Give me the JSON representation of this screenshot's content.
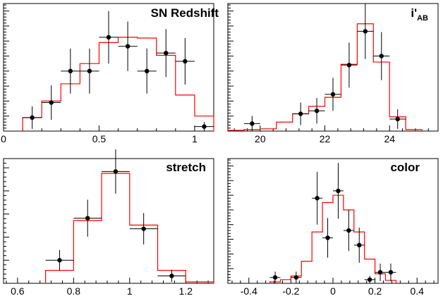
{
  "chart_data": [
    {
      "type": "histogram-with-errorbars",
      "title": "SN Redshift",
      "xlim": [
        0,
        1.1
      ],
      "ylim": [
        0,
        17
      ],
      "xticks": [
        0,
        0.5,
        1
      ],
      "xtick_labels": [
        "0",
        "0.5",
        "1"
      ],
      "histogram": {
        "color": "#ff0000",
        "edges": [
          0.1,
          0.2,
          0.3,
          0.4,
          0.5,
          0.6,
          0.7,
          0.8,
          0.9,
          1.0,
          1.1
        ],
        "values": [
          1.8,
          4.0,
          6.3,
          9.0,
          11.8,
          12.5,
          12.4,
          10.1,
          4.8,
          2.0
        ]
      },
      "points": {
        "x": [
          0.15,
          0.25,
          0.35,
          0.45,
          0.55,
          0.65,
          0.75,
          0.85,
          0.95,
          1.05
        ],
        "y": [
          1.8,
          3.8,
          8.0,
          8.0,
          12.5,
          11.3,
          8.0,
          10.4,
          9.3,
          0.6
        ],
        "xerr": [
          0.05,
          0.05,
          0.05,
          0.05,
          0.05,
          0.05,
          0.05,
          0.05,
          0.05,
          0.05
        ],
        "yerr": [
          1.5,
          2.3,
          3.0,
          3.0,
          3.5,
          3.3,
          3.0,
          3.2,
          3.1,
          0.6
        ]
      }
    },
    {
      "type": "histogram-with-errorbars",
      "title": "i'",
      "title_subscript": "AB",
      "xlim": [
        19,
        25.5
      ],
      "ylim": [
        0,
        17
      ],
      "xticks": [
        20,
        22,
        24
      ],
      "xtick_labels": [
        "20",
        "22",
        "24"
      ],
      "histogram": {
        "color": "#ff0000",
        "edges": [
          19.0,
          19.5,
          20.0,
          20.5,
          21.0,
          21.5,
          22.0,
          22.5,
          23.0,
          23.5,
          24.0,
          24.5,
          25.0
        ],
        "values": [
          0.1,
          0.2,
          0.3,
          1.2,
          2.3,
          3.3,
          4.5,
          8.9,
          14.3,
          9.2,
          1.9,
          0.2
        ]
      },
      "points": {
        "x": [
          19.75,
          21.25,
          21.75,
          22.25,
          22.75,
          23.25,
          23.75,
          24.25
        ],
        "y": [
          1.0,
          2.3,
          2.7,
          4.9,
          8.8,
          13.3,
          10.0,
          1.6
        ],
        "xerr": [
          0.25,
          0.25,
          0.25,
          0.25,
          0.25,
          0.25,
          0.25,
          0.25
        ],
        "yerr": [
          1.0,
          1.5,
          1.7,
          2.2,
          3.0,
          3.7,
          3.2,
          1.3
        ]
      }
    },
    {
      "type": "histogram-with-errorbars",
      "title": "stretch",
      "xlim": [
        0.55,
        1.3
      ],
      "ylim": [
        0,
        27
      ],
      "xticks": [
        0.6,
        0.8,
        1,
        1.2
      ],
      "xtick_labels": [
        "0.6",
        "0.8",
        "1",
        "1.2"
      ],
      "histogram": {
        "color": "#ff0000",
        "edges": [
          0.7,
          0.8,
          0.9,
          1.0,
          1.1,
          1.2,
          1.3
        ],
        "values": [
          2.8,
          13.6,
          23.8,
          12.6,
          2.8,
          0.3
        ]
      },
      "points": {
        "x": [
          0.75,
          0.85,
          0.95,
          1.05,
          1.15
        ],
        "y": [
          5.0,
          14.1,
          24.2,
          11.8,
          1.6
        ],
        "xerr": [
          0.05,
          0.05,
          0.05,
          0.05,
          0.05
        ],
        "yerr": [
          2.2,
          4.0,
          4.8,
          3.4,
          1.3
        ]
      }
    },
    {
      "type": "histogram-with-errorbars",
      "title": "color",
      "xlim": [
        -0.5,
        0.5
      ],
      "ylim": [
        0,
        17
      ],
      "xticks": [
        -0.4,
        -0.2,
        0,
        0.2,
        0.4
      ],
      "xtick_labels": [
        "-0.4",
        "-0.2",
        "0",
        "0.2",
        "0.4"
      ],
      "histogram": {
        "color": "#ff0000",
        "edges": [
          -0.3,
          -0.25,
          -0.2,
          -0.15,
          -0.1,
          -0.05,
          0.0,
          0.05,
          0.1,
          0.15,
          0.2,
          0.25,
          0.3
        ],
        "values": [
          0.2,
          0.5,
          1.0,
          3.0,
          7.0,
          11.0,
          12.0,
          10.0,
          7.0,
          3.3,
          1.3,
          0.4
        ]
      },
      "points": {
        "x": [
          -0.275,
          -0.175,
          -0.075,
          -0.025,
          0.025,
          0.075,
          0.125,
          0.175,
          0.225,
          0.275
        ],
        "y": [
          0.8,
          0.8,
          11.6,
          6.2,
          12.6,
          7.2,
          5.2,
          0.5,
          1.5,
          1.5
        ],
        "xerr": [
          0.025,
          0.025,
          0.025,
          0.025,
          0.025,
          0.025,
          0.025,
          0.025,
          0.025,
          0.025
        ],
        "yerr": [
          0.8,
          0.8,
          3.6,
          2.7,
          3.8,
          2.8,
          2.4,
          0.5,
          1.2,
          1.2
        ]
      }
    }
  ]
}
